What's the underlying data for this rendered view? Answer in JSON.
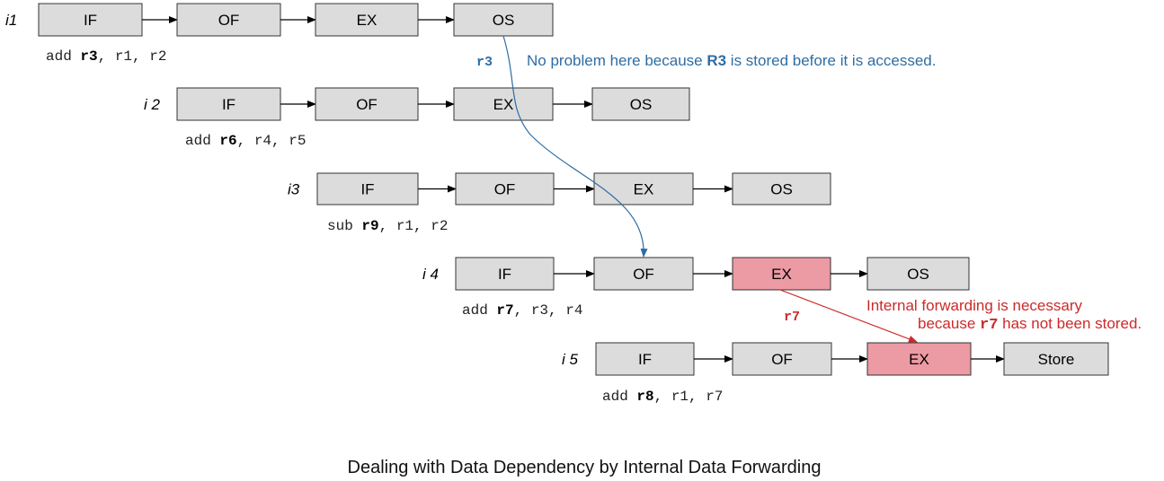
{
  "colors": {
    "box_fill": "#dcdcdc",
    "highlight_fill": "#ec9aa3",
    "blue_note": "#2e6da4",
    "red_note": "#cc2a2a"
  },
  "rows": [
    {
      "label": "i1",
      "stages": [
        "IF",
        "OF",
        "EX",
        "OS"
      ],
      "highlight": [],
      "instr": {
        "op": "add",
        "dest": "r3",
        "src": "r1, r2"
      }
    },
    {
      "label": "i 2",
      "stages": [
        "IF",
        "OF",
        "EX",
        "OS"
      ],
      "highlight": [],
      "instr": {
        "op": "add",
        "dest": "r6",
        "src": "r4, r5"
      }
    },
    {
      "label": "i3",
      "stages": [
        "IF",
        "OF",
        "EX",
        "OS"
      ],
      "highlight": [],
      "instr": {
        "op": "sub",
        "dest": "r9",
        "src": "r1, r2"
      }
    },
    {
      "label": "i 4",
      "stages": [
        "IF",
        "OF",
        "EX",
        "OS"
      ],
      "highlight": [
        2
      ],
      "instr": {
        "op": "add",
        "dest": "r7",
        "src": "r3, r4"
      }
    },
    {
      "label": "i 5",
      "stages": [
        "IF",
        "OF",
        "EX",
        "Store"
      ],
      "highlight": [
        2
      ],
      "instr": {
        "op": "add",
        "dest": "r8",
        "src": "r1, r7"
      }
    }
  ],
  "notes": {
    "r3_tag": "r3",
    "blue_pre": "No problem here because ",
    "blue_bold": "R3",
    "blue_post": " is stored before it is accessed.",
    "r7_tag": "r7",
    "red_line1": "Internal forwarding is necessary",
    "red_line2_pre": "because ",
    "red_line2_code": "r7",
    "red_line2_post": " has not been stored."
  },
  "caption": "Dealing with Data Dependency by Internal Data Forwarding"
}
